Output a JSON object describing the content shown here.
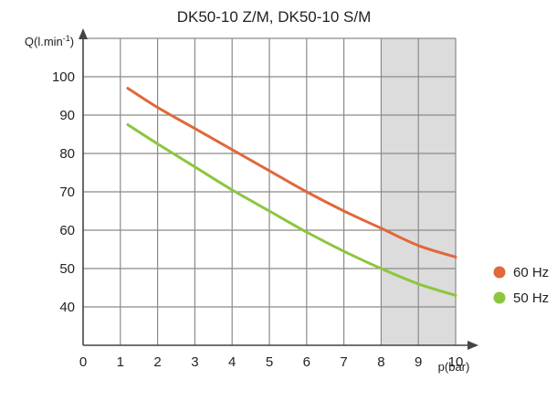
{
  "chart_data": {
    "type": "line",
    "title": "DK50-10 Z/M, DK50-10 S/M",
    "ylabel_base": "Q(l.min",
    "ylabel_sup": "-1",
    "ylabel_end": ")",
    "xlabel": "p(bar)",
    "xlim": [
      0,
      10
    ],
    "ylim": [
      30,
      110
    ],
    "xticks": [
      "0",
      "1",
      "2",
      "3",
      "4",
      "5",
      "6",
      "7",
      "8",
      "9",
      "10"
    ],
    "yticks": [
      {
        "value": 40,
        "label": "40"
      },
      {
        "value": 50,
        "label": "50"
      },
      {
        "value": 60,
        "label": "60"
      },
      {
        "value": 70,
        "label": "70"
      },
      {
        "value": 80,
        "label": "80"
      },
      {
        "value": 90,
        "label": "90"
      },
      {
        "value": 100,
        "label": "100"
      }
    ],
    "shaded_x_range": [
      8,
      10
    ],
    "grid": true,
    "legend_position": "right",
    "series": [
      {
        "name": "60 Hz",
        "color": "#e0683a",
        "x": [
          1.2,
          2,
          3,
          4,
          5,
          6,
          7,
          8,
          9,
          10
        ],
        "y": [
          97,
          92,
          86.5,
          81,
          75.5,
          70,
          65,
          60.5,
          56,
          53
        ]
      },
      {
        "name": "50 Hz",
        "color": "#8cc63e",
        "x": [
          1.2,
          2,
          3,
          4,
          5,
          6,
          7,
          8,
          9,
          10
        ],
        "y": [
          87.5,
          82.5,
          76.5,
          70.5,
          65,
          59.5,
          54.5,
          50,
          46,
          43
        ]
      }
    ]
  }
}
